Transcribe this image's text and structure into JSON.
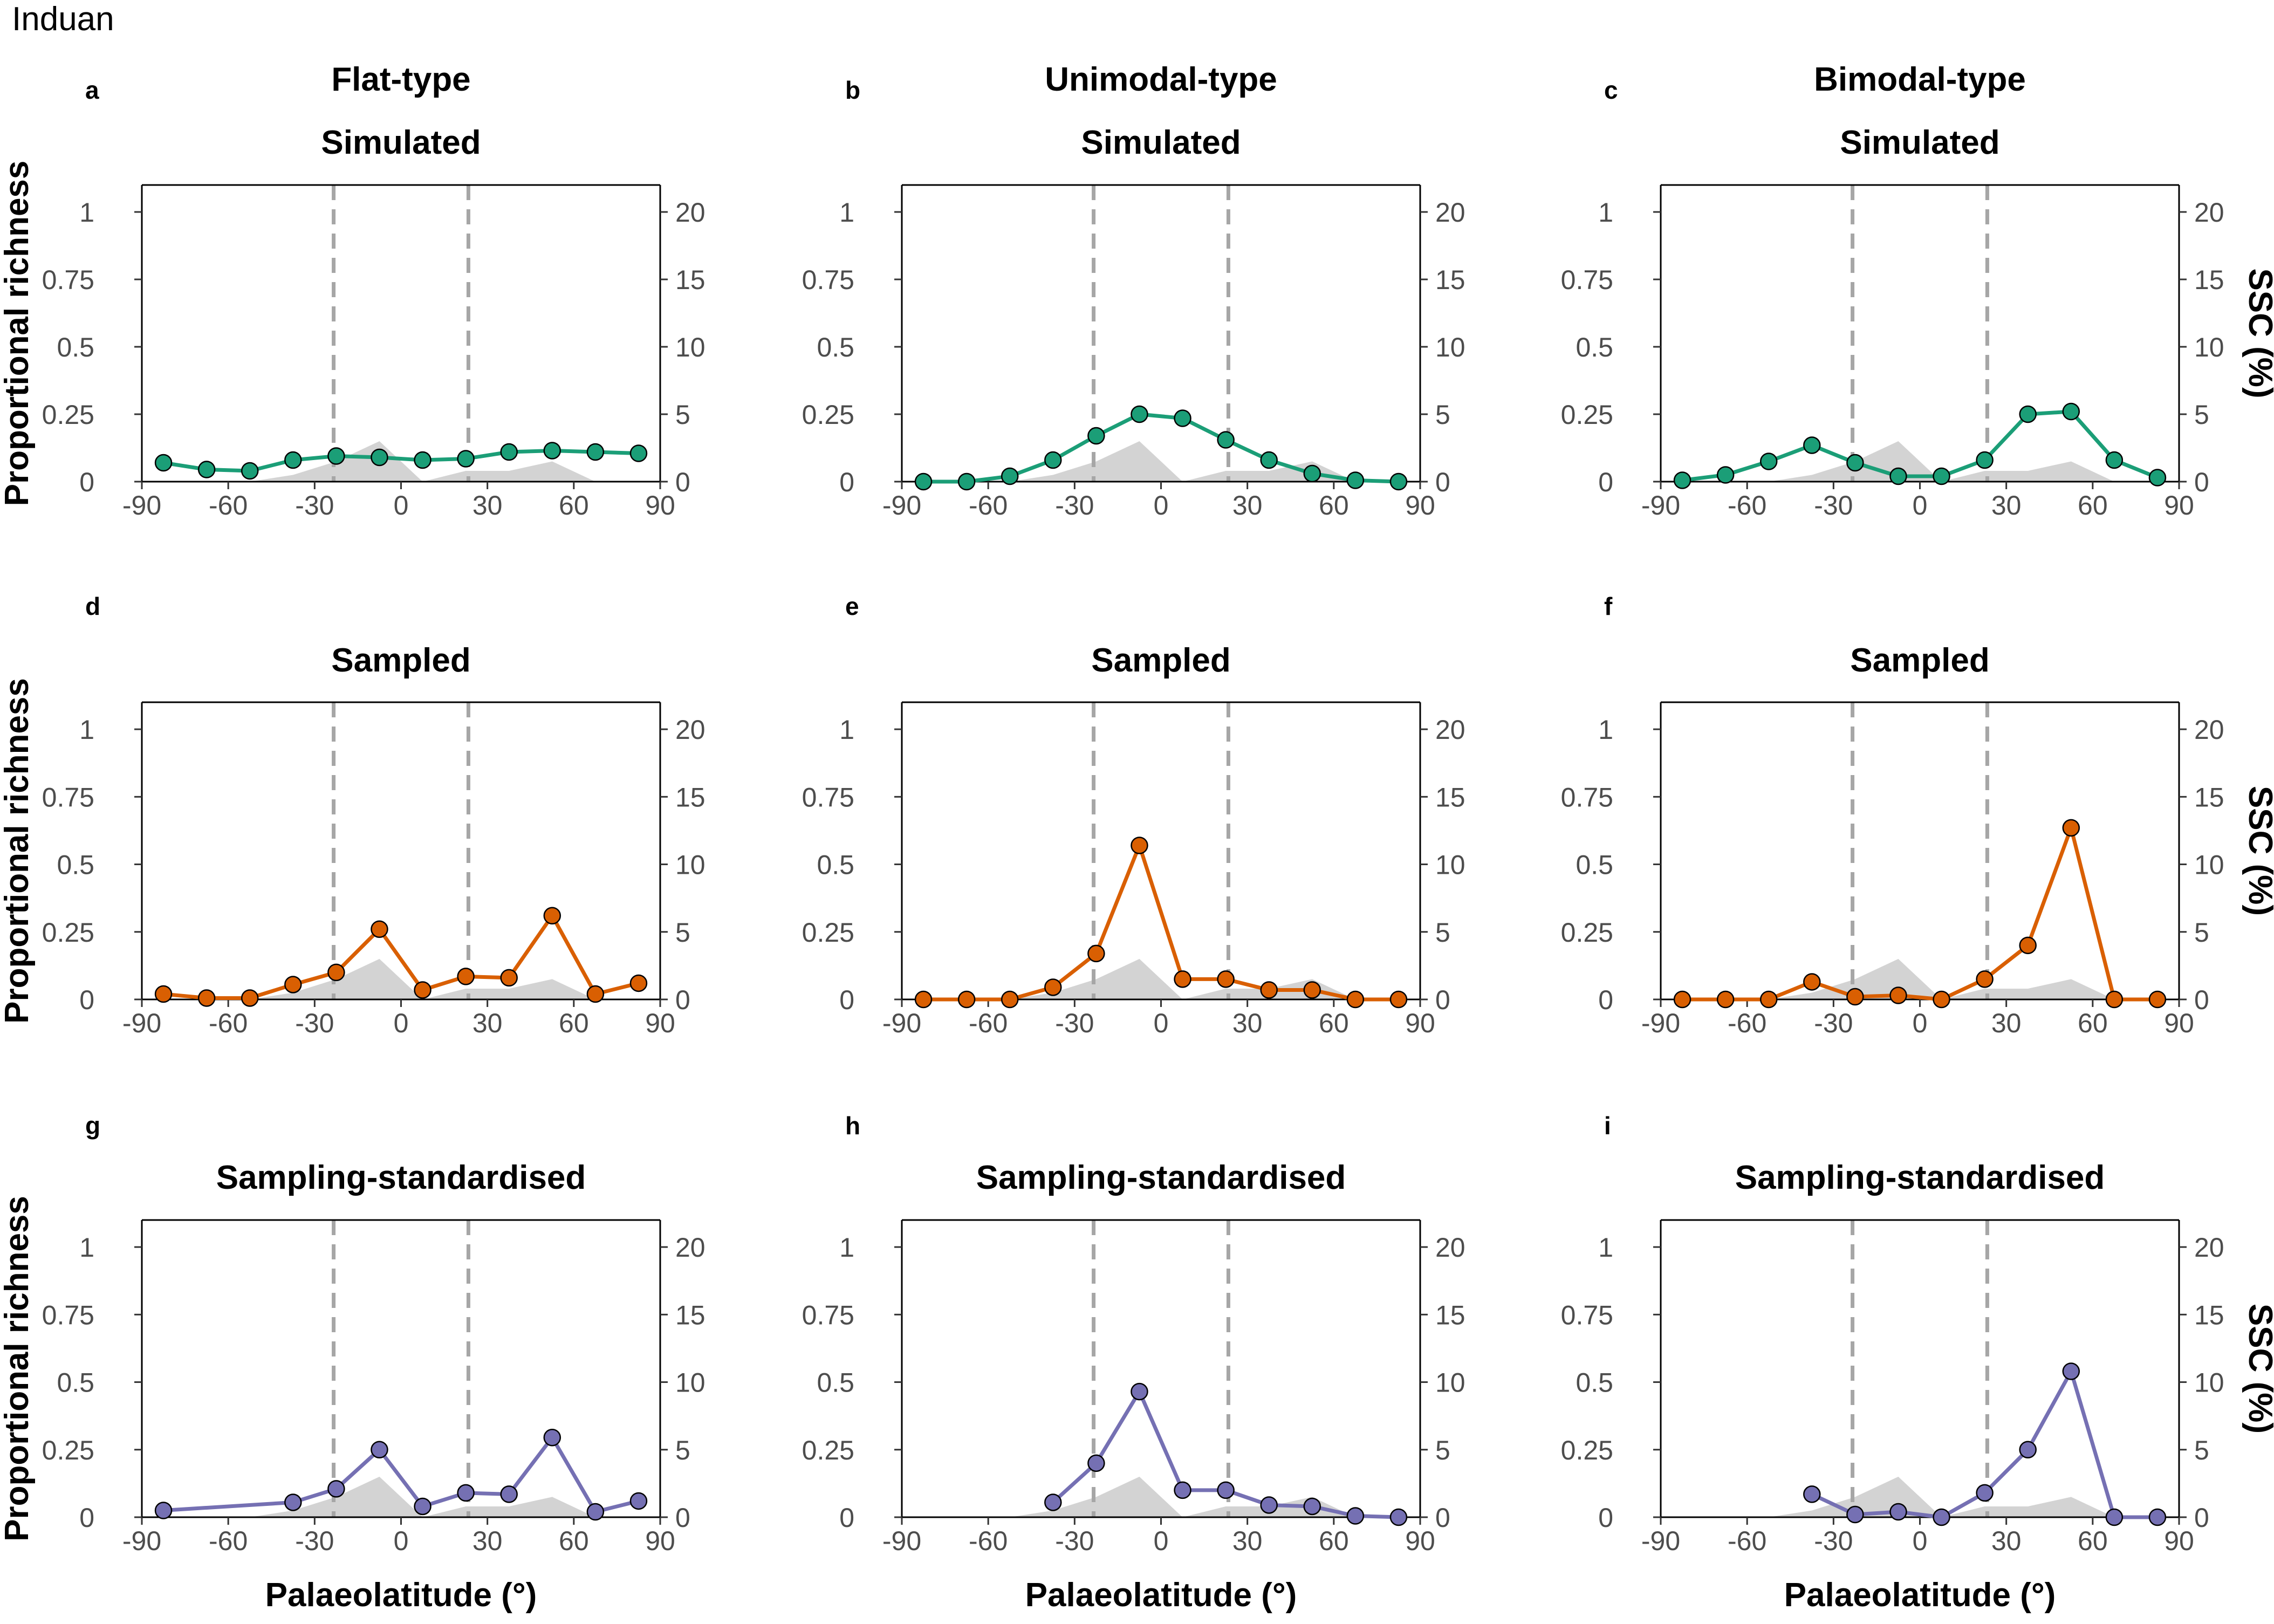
{
  "figure": {
    "title": "Induan",
    "column_titles": [
      "Flat-type",
      "Unimodal-type",
      "Bimodal-type"
    ],
    "row_titles": [
      "Simulated",
      "Sampled",
      "Sampling-standardised"
    ],
    "ylabel_left": "Proportional richness",
    "ylabel_right": "SSC (%)",
    "xlabel": "Palaeolatitude (°)",
    "colors": {
      "simulated": "#1b9e77",
      "sampled": "#d95f02",
      "standardised": "#7570b3",
      "ssc_area": "#d3d3d3",
      "tropics_line": "#a6a6a6"
    }
  },
  "chart_data": [
    {
      "panel": "a",
      "type": "line",
      "title": "Simulated",
      "column": "Flat-type",
      "color": "#1b9e77",
      "x": [
        -82.5,
        -67.5,
        -52.5,
        -37.5,
        -22.5,
        -7.5,
        7.5,
        22.5,
        37.5,
        52.5,
        67.5,
        82.5
      ],
      "values": [
        0.07,
        0.045,
        0.04,
        0.08,
        0.095,
        0.09,
        0.08,
        0.085,
        0.11,
        0.115,
        0.11,
        0.105
      ],
      "ssc": {
        "x": [
          -82.5,
          -67.5,
          -52.5,
          -37.5,
          -22.5,
          -7.5,
          7.5,
          22.5,
          37.5,
          52.5,
          67.5,
          82.5
        ],
        "values": [
          0,
          0,
          0,
          0.5,
          1.5,
          3,
          0,
          0.8,
          0.8,
          1.5,
          0,
          0
        ]
      },
      "xlim": [
        -90,
        90
      ],
      "ylim": [
        0,
        1.1
      ],
      "y2lim": [
        0,
        22
      ],
      "xticks": [
        "-90",
        "-60",
        "-30",
        "0",
        "30",
        "60",
        "90"
      ],
      "yticks": [
        "0",
        "0.25",
        "0.5",
        "0.75",
        "1"
      ],
      "y2ticks": [
        "0",
        "5",
        "10",
        "15",
        "20"
      ],
      "vlines": [
        -23.4,
        23.4
      ]
    },
    {
      "panel": "b",
      "type": "line",
      "title": "Simulated",
      "column": "Unimodal-type",
      "color": "#1b9e77",
      "x": [
        -82.5,
        -67.5,
        -52.5,
        -37.5,
        -22.5,
        -7.5,
        7.5,
        22.5,
        37.5,
        52.5,
        67.5,
        82.5
      ],
      "values": [
        0.0,
        0.0,
        0.02,
        0.08,
        0.17,
        0.25,
        0.235,
        0.155,
        0.08,
        0.03,
        0.005,
        0.0
      ],
      "ssc": {
        "x": [
          -82.5,
          -67.5,
          -52.5,
          -37.5,
          -22.5,
          -7.5,
          7.5,
          22.5,
          37.5,
          52.5,
          67.5,
          82.5
        ],
        "values": [
          0,
          0,
          0,
          0.5,
          1.5,
          3,
          0,
          0.8,
          0.8,
          1.5,
          0,
          0
        ]
      },
      "xlim": [
        -90,
        90
      ],
      "ylim": [
        0,
        1.1
      ],
      "y2lim": [
        0,
        22
      ],
      "xticks": [
        "-90",
        "-60",
        "-30",
        "0",
        "30",
        "60",
        "90"
      ],
      "yticks": [
        "0",
        "0.25",
        "0.5",
        "0.75",
        "1"
      ],
      "y2ticks": [
        "0",
        "5",
        "10",
        "15",
        "20"
      ],
      "vlines": [
        -23.4,
        23.4
      ]
    },
    {
      "panel": "c",
      "type": "line",
      "title": "Simulated",
      "column": "Bimodal-type",
      "color": "#1b9e77",
      "x": [
        -82.5,
        -67.5,
        -52.5,
        -37.5,
        -22.5,
        -7.5,
        7.5,
        22.5,
        37.5,
        52.5,
        67.5,
        82.5
      ],
      "values": [
        0.005,
        0.025,
        0.075,
        0.135,
        0.07,
        0.02,
        0.02,
        0.08,
        0.25,
        0.26,
        0.08,
        0.015
      ],
      "ssc": {
        "x": [
          -82.5,
          -67.5,
          -52.5,
          -37.5,
          -22.5,
          -7.5,
          7.5,
          22.5,
          37.5,
          52.5,
          67.5,
          82.5
        ],
        "values": [
          0,
          0,
          0,
          0.5,
          1.5,
          3,
          0,
          0.8,
          0.8,
          1.5,
          0,
          0
        ]
      },
      "xlim": [
        -90,
        90
      ],
      "ylim": [
        0,
        1.1
      ],
      "y2lim": [
        0,
        22
      ],
      "xticks": [
        "-90",
        "-60",
        "-30",
        "0",
        "30",
        "60",
        "90"
      ],
      "yticks": [
        "0",
        "0.25",
        "0.5",
        "0.75",
        "1"
      ],
      "y2ticks": [
        "0",
        "5",
        "10",
        "15",
        "20"
      ],
      "vlines": [
        -23.4,
        23.4
      ]
    },
    {
      "panel": "d",
      "type": "line",
      "title": "Sampled",
      "column": "Flat-type",
      "color": "#d95f02",
      "x": [
        -82.5,
        -67.5,
        -52.5,
        -37.5,
        -22.5,
        -7.5,
        7.5,
        22.5,
        37.5,
        52.5,
        67.5,
        82.5
      ],
      "values": [
        0.02,
        0.005,
        0.005,
        0.055,
        0.1,
        0.26,
        0.035,
        0.085,
        0.08,
        0.31,
        0.02,
        0.06
      ],
      "ssc": {
        "x": [
          -82.5,
          -67.5,
          -52.5,
          -37.5,
          -22.5,
          -7.5,
          7.5,
          22.5,
          37.5,
          52.5,
          67.5,
          82.5
        ],
        "values": [
          0,
          0,
          0,
          0.5,
          1.5,
          3,
          0,
          0.8,
          0.8,
          1.5,
          0,
          0
        ]
      },
      "xlim": [
        -90,
        90
      ],
      "ylim": [
        0,
        1.1
      ],
      "y2lim": [
        0,
        22
      ],
      "xticks": [
        "-90",
        "-60",
        "-30",
        "0",
        "30",
        "60",
        "90"
      ],
      "yticks": [
        "0",
        "0.25",
        "0.5",
        "0.75",
        "1"
      ],
      "y2ticks": [
        "0",
        "5",
        "10",
        "15",
        "20"
      ],
      "vlines": [
        -23.4,
        23.4
      ]
    },
    {
      "panel": "e",
      "type": "line",
      "title": "Sampled",
      "column": "Unimodal-type",
      "color": "#d95f02",
      "x": [
        -82.5,
        -67.5,
        -52.5,
        -37.5,
        -22.5,
        -7.5,
        7.5,
        22.5,
        37.5,
        52.5,
        67.5,
        82.5
      ],
      "values": [
        0.0,
        0.0,
        0.0,
        0.045,
        0.17,
        0.57,
        0.075,
        0.075,
        0.035,
        0.035,
        0.0,
        0.0
      ],
      "ssc": {
        "x": [
          -82.5,
          -67.5,
          -52.5,
          -37.5,
          -22.5,
          -7.5,
          7.5,
          22.5,
          37.5,
          52.5,
          67.5,
          82.5
        ],
        "values": [
          0,
          0,
          0,
          0.5,
          1.5,
          3,
          0,
          0.8,
          0.8,
          1.5,
          0,
          0
        ]
      },
      "xlim": [
        -90,
        90
      ],
      "ylim": [
        0,
        1.1
      ],
      "y2lim": [
        0,
        22
      ],
      "xticks": [
        "-90",
        "-60",
        "-30",
        "0",
        "30",
        "60",
        "90"
      ],
      "yticks": [
        "0",
        "0.25",
        "0.5",
        "0.75",
        "1"
      ],
      "y2ticks": [
        "0",
        "5",
        "10",
        "15",
        "20"
      ],
      "vlines": [
        -23.4,
        23.4
      ]
    },
    {
      "panel": "f",
      "type": "line",
      "title": "Sampled",
      "column": "Bimodal-type",
      "color": "#d95f02",
      "x": [
        -82.5,
        -67.5,
        -52.5,
        -37.5,
        -22.5,
        -7.5,
        7.5,
        22.5,
        37.5,
        52.5,
        67.5,
        82.5
      ],
      "values": [
        0.0,
        0.0,
        0.0,
        0.065,
        0.01,
        0.015,
        0.0,
        0.075,
        0.2,
        0.635,
        0.0,
        0.0
      ],
      "ssc": {
        "x": [
          -82.5,
          -67.5,
          -52.5,
          -37.5,
          -22.5,
          -7.5,
          7.5,
          22.5,
          37.5,
          52.5,
          67.5,
          82.5
        ],
        "values": [
          0,
          0,
          0,
          0.5,
          1.5,
          3,
          0,
          0.8,
          0.8,
          1.5,
          0,
          0
        ]
      },
      "xlim": [
        -90,
        90
      ],
      "ylim": [
        0,
        1.1
      ],
      "y2lim": [
        0,
        22
      ],
      "xticks": [
        "-90",
        "-60",
        "-30",
        "0",
        "30",
        "60",
        "90"
      ],
      "yticks": [
        "0",
        "0.25",
        "0.5",
        "0.75",
        "1"
      ],
      "y2ticks": [
        "0",
        "5",
        "10",
        "15",
        "20"
      ],
      "vlines": [
        -23.4,
        23.4
      ]
    },
    {
      "panel": "g",
      "type": "line",
      "title": "Sampling-standardised",
      "column": "Flat-type",
      "color": "#7570b3",
      "x": [
        -82.5,
        -37.5,
        -22.5,
        -7.5,
        7.5,
        22.5,
        37.5,
        52.5,
        67.5,
        82.5
      ],
      "values": [
        0.025,
        0.055,
        0.105,
        0.25,
        0.04,
        0.09,
        0.085,
        0.295,
        0.02,
        0.06
      ],
      "ssc": {
        "x": [
          -82.5,
          -67.5,
          -52.5,
          -37.5,
          -22.5,
          -7.5,
          7.5,
          22.5,
          37.5,
          52.5,
          67.5,
          82.5
        ],
        "values": [
          0,
          0,
          0,
          0.5,
          1.5,
          3,
          0,
          0.8,
          0.8,
          1.5,
          0,
          0
        ]
      },
      "xlim": [
        -90,
        90
      ],
      "ylim": [
        0,
        1.1
      ],
      "y2lim": [
        0,
        22
      ],
      "xticks": [
        "-90",
        "-60",
        "-30",
        "0",
        "30",
        "60",
        "90"
      ],
      "yticks": [
        "0",
        "0.25",
        "0.5",
        "0.75",
        "1"
      ],
      "y2ticks": [
        "0",
        "5",
        "10",
        "15",
        "20"
      ],
      "vlines": [
        -23.4,
        23.4
      ]
    },
    {
      "panel": "h",
      "type": "line",
      "title": "Sampling-standardised",
      "column": "Unimodal-type",
      "color": "#7570b3",
      "x": [
        -37.5,
        -22.5,
        -7.5,
        7.5,
        22.5,
        37.5,
        52.5,
        67.5,
        82.5
      ],
      "values": [
        0.055,
        0.2,
        0.465,
        0.1,
        0.1,
        0.045,
        0.04,
        0.005,
        0.0
      ],
      "ssc": {
        "x": [
          -82.5,
          -67.5,
          -52.5,
          -37.5,
          -22.5,
          -7.5,
          7.5,
          22.5,
          37.5,
          52.5,
          67.5,
          82.5
        ],
        "values": [
          0,
          0,
          0,
          0.5,
          1.5,
          3,
          0,
          0.8,
          0.8,
          1.5,
          0,
          0
        ]
      },
      "xlim": [
        -90,
        90
      ],
      "ylim": [
        0,
        1.1
      ],
      "y2lim": [
        0,
        22
      ],
      "xticks": [
        "-90",
        "-60",
        "-30",
        "0",
        "30",
        "60",
        "90"
      ],
      "yticks": [
        "0",
        "0.25",
        "0.5",
        "0.75",
        "1"
      ],
      "y2ticks": [
        "0",
        "5",
        "10",
        "15",
        "20"
      ],
      "vlines": [
        -23.4,
        23.4
      ]
    },
    {
      "panel": "i",
      "type": "line",
      "title": "Sampling-standardised",
      "column": "Bimodal-type",
      "color": "#7570b3",
      "x": [
        -37.5,
        -22.5,
        -7.5,
        7.5,
        22.5,
        37.5,
        52.5,
        67.5,
        82.5
      ],
      "values": [
        0.085,
        0.01,
        0.02,
        0.0,
        0.09,
        0.25,
        0.54,
        0.0,
        0.0
      ],
      "ssc": {
        "x": [
          -82.5,
          -67.5,
          -52.5,
          -37.5,
          -22.5,
          -7.5,
          7.5,
          22.5,
          37.5,
          52.5,
          67.5,
          82.5
        ],
        "values": [
          0,
          0,
          0,
          0.5,
          1.5,
          3,
          0,
          0.8,
          0.8,
          1.5,
          0,
          0
        ]
      },
      "xlim": [
        -90,
        90
      ],
      "ylim": [
        0,
        1.1
      ],
      "y2lim": [
        0,
        22
      ],
      "xticks": [
        "-90",
        "-60",
        "-30",
        "0",
        "30",
        "60",
        "90"
      ],
      "yticks": [
        "0",
        "0.25",
        "0.5",
        "0.75",
        "1"
      ],
      "y2ticks": [
        "0",
        "5",
        "10",
        "15",
        "20"
      ],
      "vlines": [
        -23.4,
        23.4
      ]
    }
  ]
}
